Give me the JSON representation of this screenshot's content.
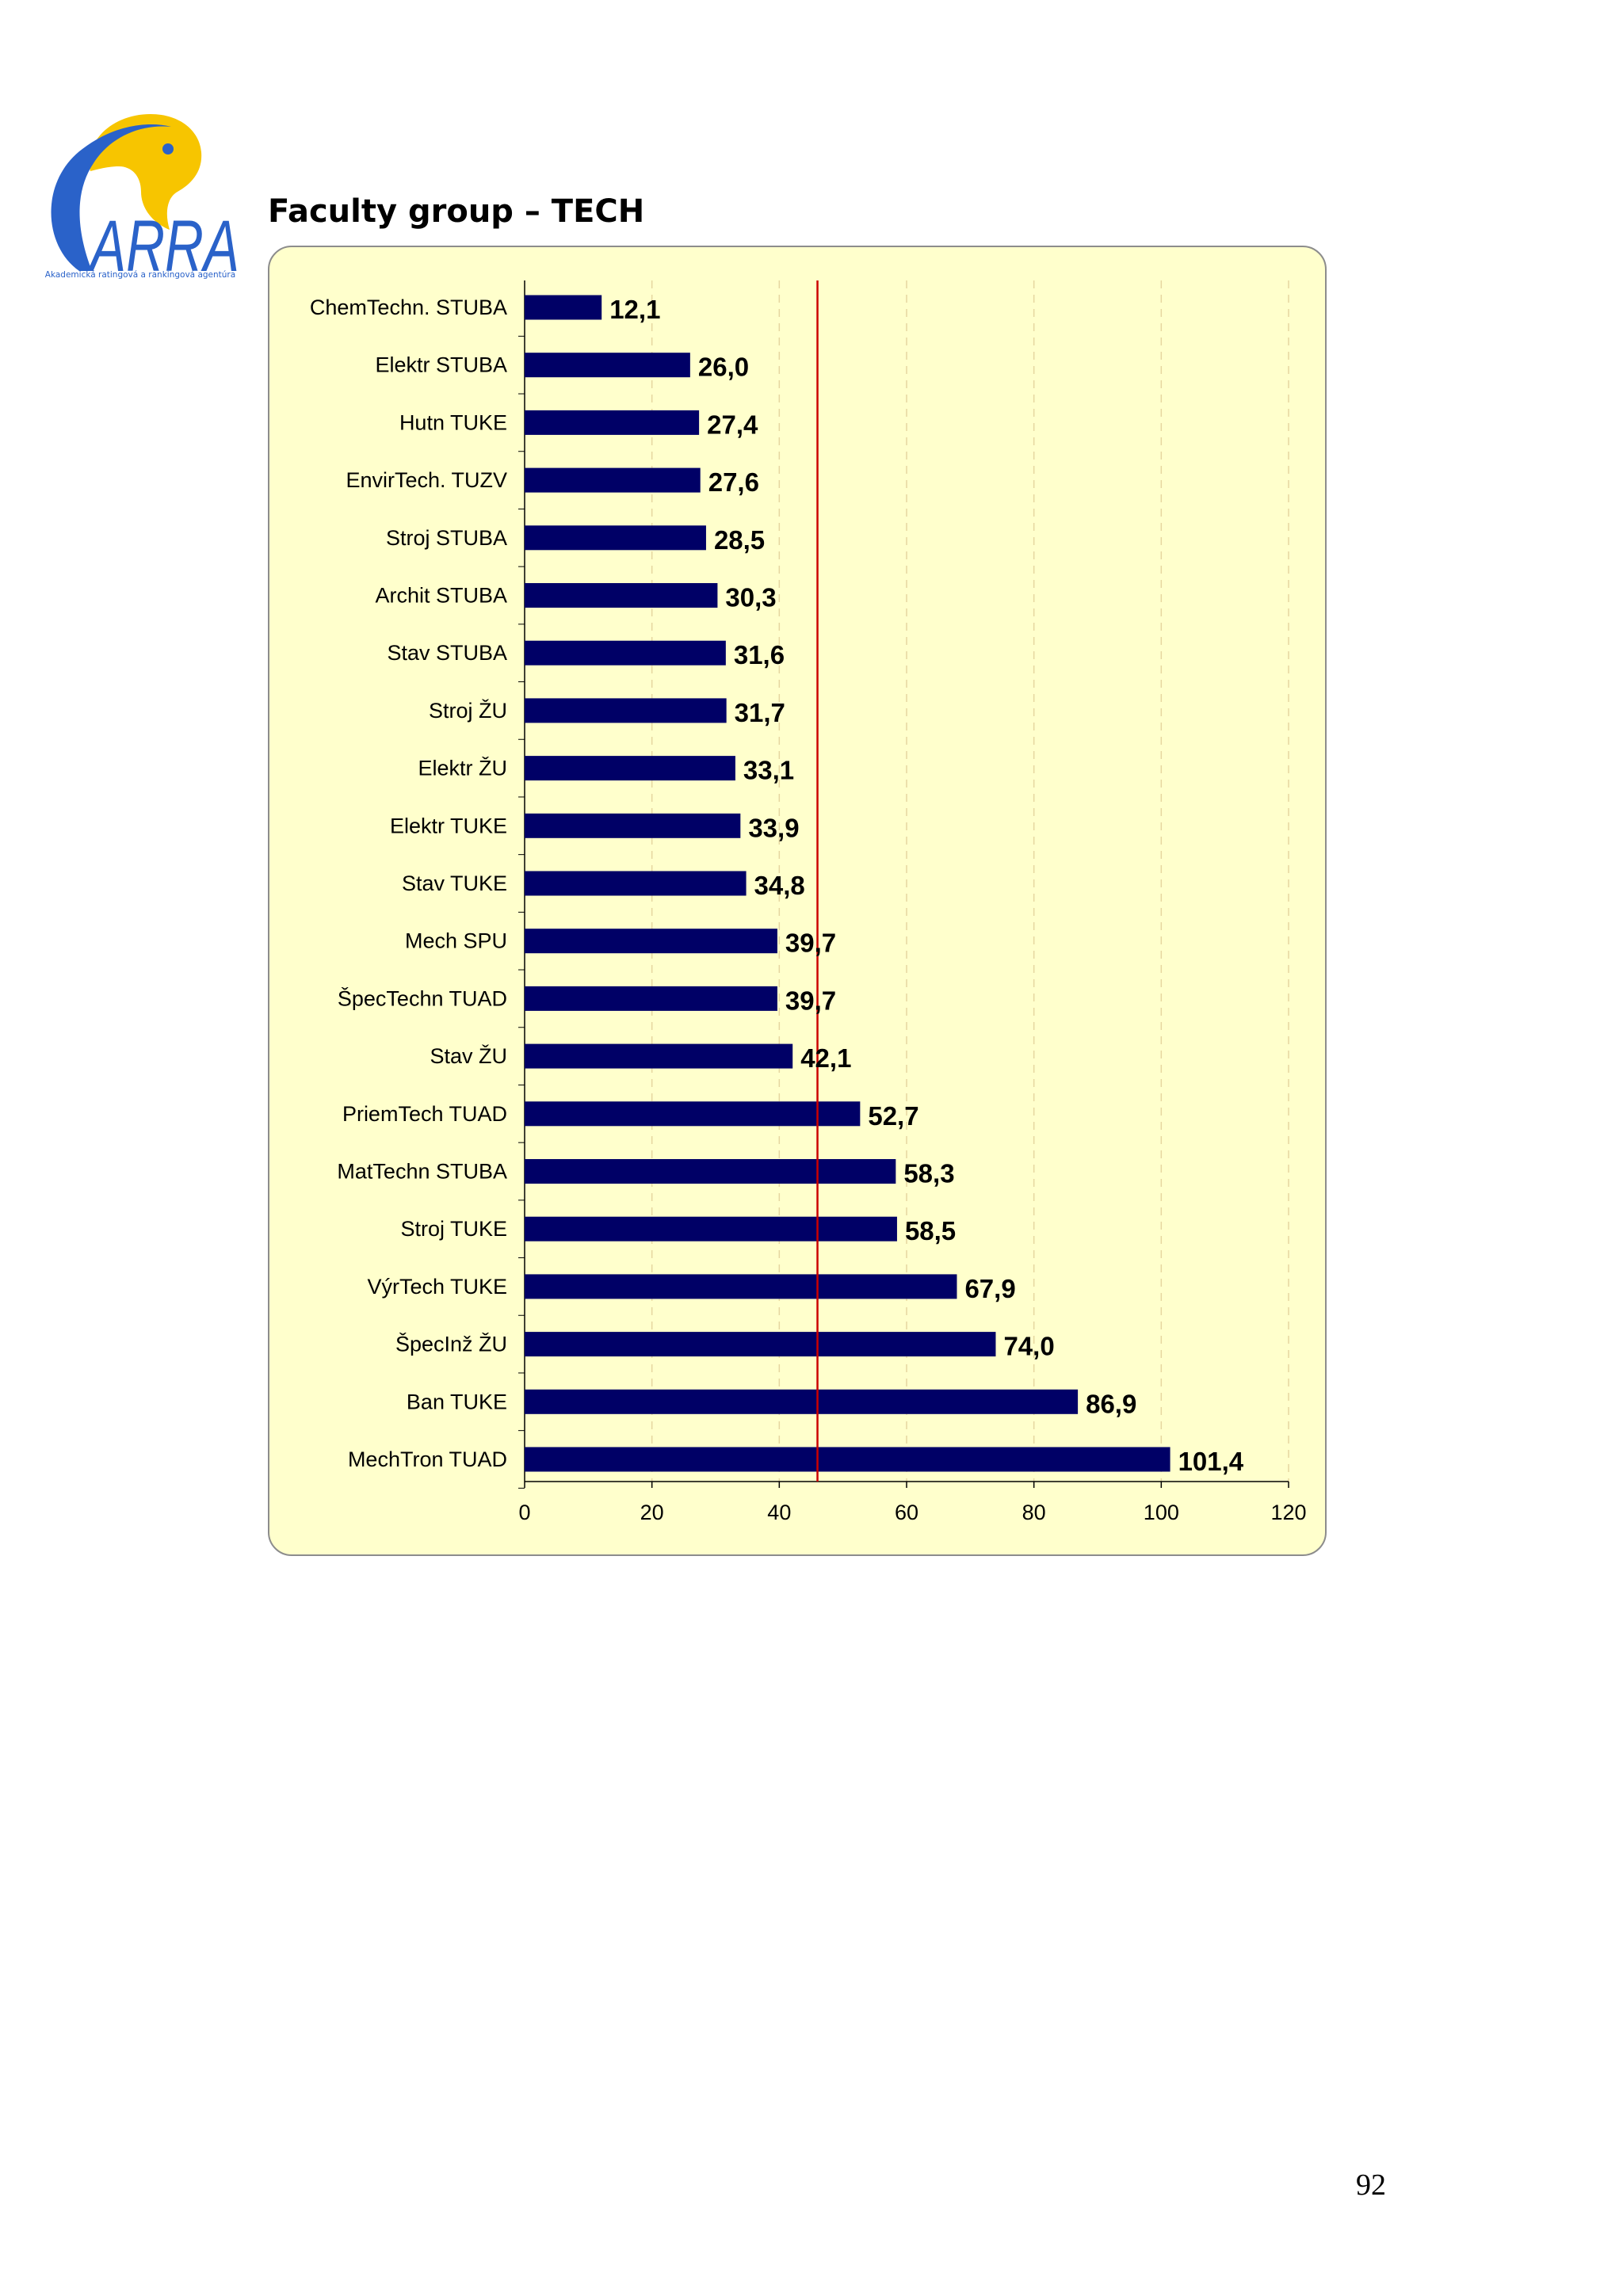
{
  "logo": {
    "text": "ARRA",
    "caption": "Akademická ratingová a rankingová agentúra",
    "colors": {
      "blue": "#2a62c9",
      "yellow": "#f7c500"
    }
  },
  "page_title": "Faculty group – TECH",
  "page_number": "92",
  "colors": {
    "bar": "#000066",
    "reference_line": "#cc0000",
    "panel": "#ffffcc",
    "grid": "#e6d6a0"
  },
  "chart_data": {
    "type": "bar",
    "orientation": "horizontal",
    "categories": [
      "ChemTechn. STUBA",
      "Elektr STUBA",
      "Hutn TUKE",
      "EnvirTech. TUZV",
      "Stroj STUBA",
      "Archit STUBA",
      "Stav STUBA",
      "Stroj ŽU",
      "Elektr ŽU",
      "Elektr TUKE",
      "Stav TUKE",
      "Mech SPU",
      "ŠpecTechn TUAD",
      "Stav ŽU",
      "PriemTech TUAD",
      "MatTechn STUBA",
      "Stroj TUKE",
      "VýrTech TUKE",
      "ŠpecInž ŽU",
      "Ban TUKE",
      "MechTron TUAD"
    ],
    "values": [
      12.1,
      26.0,
      27.4,
      27.6,
      28.5,
      30.3,
      31.6,
      31.7,
      33.1,
      33.9,
      34.8,
      39.7,
      39.7,
      42.1,
      52.7,
      58.3,
      58.5,
      67.9,
      74.0,
      86.9,
      101.4
    ],
    "value_labels": [
      "12,1",
      "26,0",
      "27,4",
      "27,6",
      "28,5",
      "30,3",
      "31,6",
      "31,7",
      "33,1",
      "33,9",
      "34,8",
      "39,7",
      "39,7",
      "42,1",
      "52,7",
      "58,3",
      "58,5",
      "67,9",
      "74,0",
      "86,9",
      "101,4"
    ],
    "xlim": [
      0,
      120
    ],
    "xticks": [
      0,
      20,
      40,
      60,
      80,
      100,
      120
    ],
    "reference_line": 46,
    "grid": true,
    "grid_style": "vertical dashed",
    "legend": "none"
  }
}
